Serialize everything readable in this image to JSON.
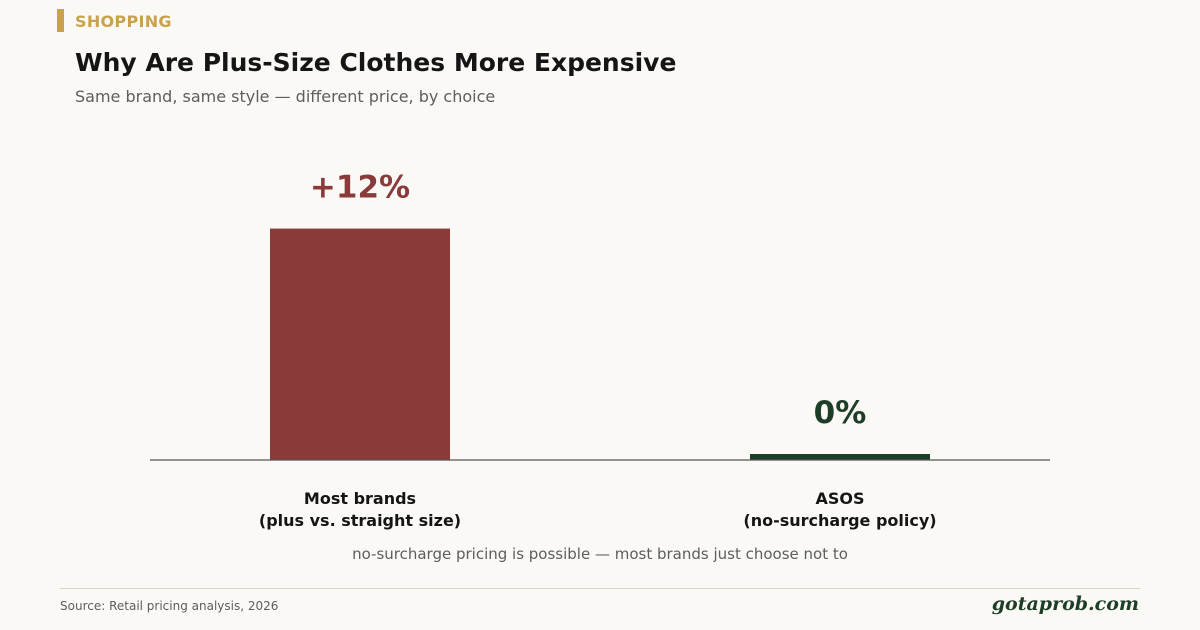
{
  "kicker": "SHOPPING",
  "colors": {
    "accent": "#c9a24d",
    "bar_most_brands": "#8b3a3a",
    "bar_asos": "#1d3d26",
    "axis": "#555555",
    "text_dark": "#151515",
    "text_muted": "#5d5d5d"
  },
  "chart_data": {
    "type": "bar",
    "title": "Why Are Plus-Size Clothes More Expensive",
    "subtitle": "Same brand, same style — different price, by choice",
    "categories": [
      [
        "Most brands",
        "(plus vs. straight size)"
      ],
      [
        "ASOS",
        "(no-surcharge policy)"
      ]
    ],
    "values": [
      12,
      0
    ],
    "value_labels": [
      "+12%",
      "0%"
    ],
    "bar_colors": [
      "#8b3a3a",
      "#1d3d26"
    ],
    "ylim": [
      0,
      14
    ],
    "grid": false,
    "legend": "none",
    "annotation": "no-surcharge pricing is possible — most brands just choose not to"
  },
  "footer": {
    "source": "Source: Retail pricing analysis, 2026",
    "brand": "gotaprob.com"
  }
}
